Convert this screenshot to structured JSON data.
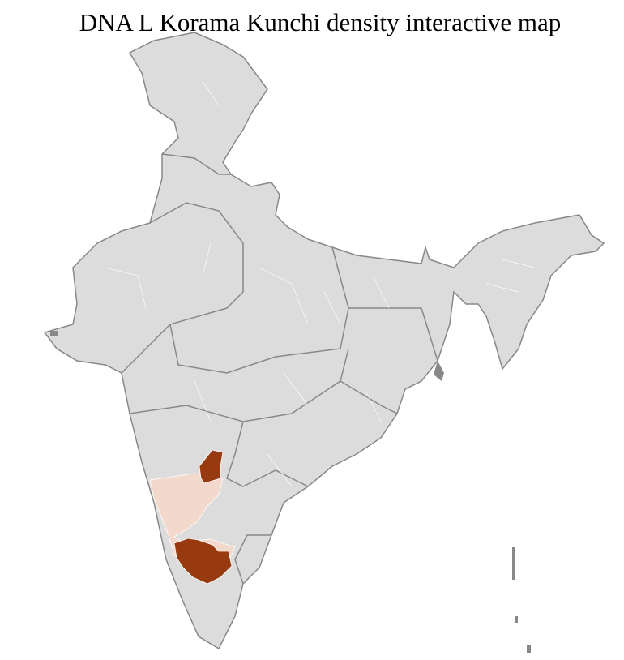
{
  "title": "DNA L Korama Kunchi density interactive map",
  "map": {
    "region": "India districts",
    "colors": {
      "background_region": "#dcdcdc",
      "state_border": "#888888",
      "district_border": "#ffffff",
      "low_density": "#f2d9cc",
      "high_density": "#983a0f"
    },
    "highlighted_state": "Karnataka",
    "density_levels": [
      "low",
      "high"
    ]
  }
}
